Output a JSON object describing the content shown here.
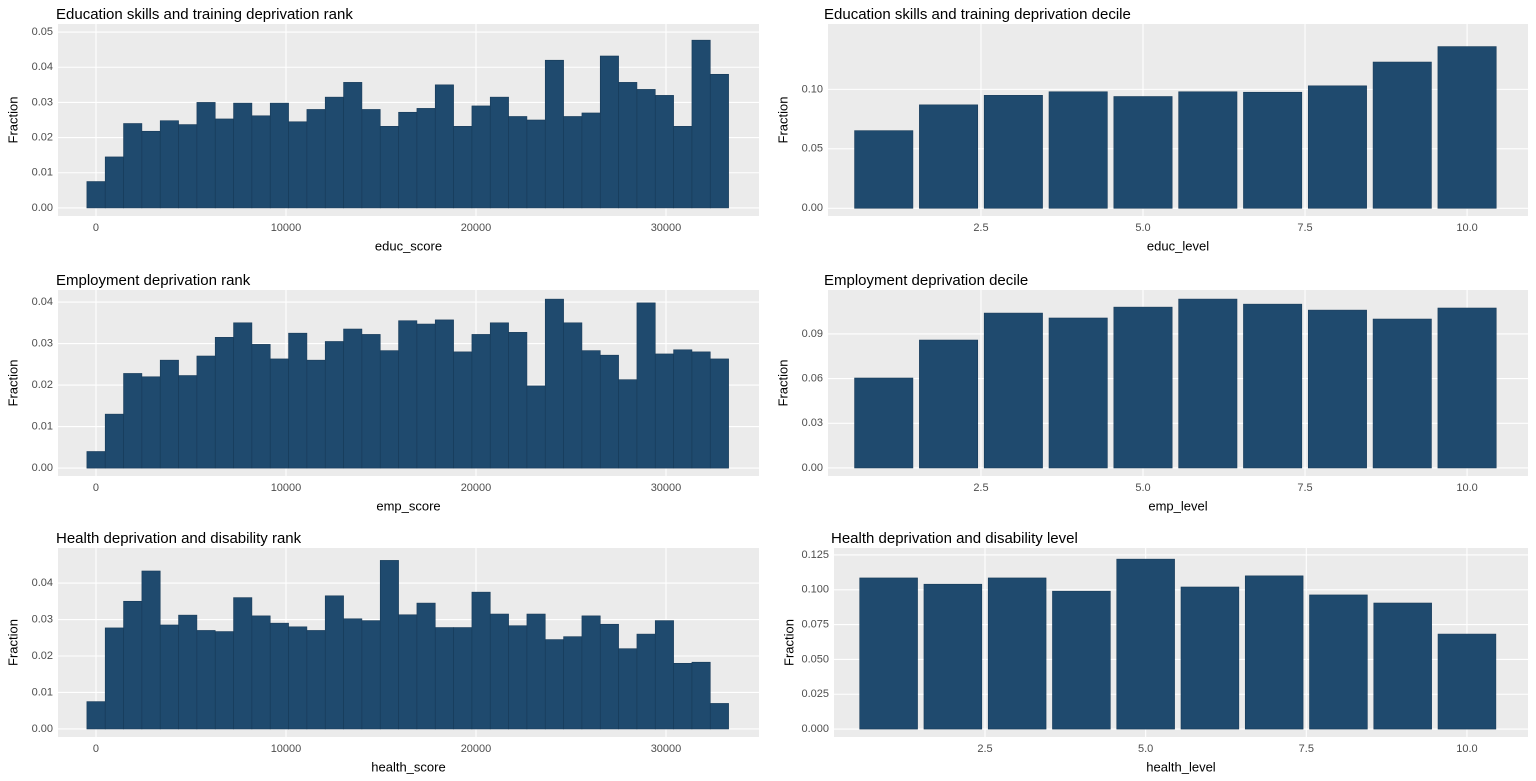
{
  "chart_data": [
    {
      "type": "histogram",
      "title": "Education skills and training deprivation rank",
      "x_label": "educ_score",
      "y_label": "Fraction",
      "color": "#1f4a6e",
      "bins": [
        -480,
        485,
        1450,
        2415,
        3380,
        4345,
        5310,
        6275,
        7240,
        8205,
        9170,
        10135,
        11100,
        12065,
        13030,
        13995,
        14960,
        15925,
        16890,
        17855,
        18820,
        19785,
        20750,
        21715,
        22680,
        23645,
        24610,
        25575,
        26540,
        27505,
        28470,
        29435,
        30400,
        31365,
        32330,
        33295
      ],
      "values": [
        0.0075,
        0.0145,
        0.024,
        0.0218,
        0.0248,
        0.0237,
        0.03,
        0.0253,
        0.0298,
        0.0262,
        0.0298,
        0.0245,
        0.028,
        0.0315,
        0.0357,
        0.028,
        0.0232,
        0.0272,
        0.0283,
        0.035,
        0.0232,
        0.029,
        0.0315,
        0.026,
        0.025,
        0.042,
        0.026,
        0.027,
        0.0432,
        0.0357,
        0.0337,
        0.032,
        0.0232,
        0.0477,
        0.038
      ],
      "xlim": [
        -2000,
        34895
      ],
      "xticks": [
        0,
        10000,
        20000,
        30000
      ],
      "ylim": [
        -0.0023,
        0.0523
      ],
      "yticks": [
        {
          "value": 0,
          "label": "0.00"
        },
        0.01,
        0.02,
        0.03,
        0.04,
        0.05
      ],
      "grid": true
    },
    {
      "type": "bar",
      "title": "Education skills and training deprivation decile",
      "x_label": "educ_level",
      "y_label": "Fraction",
      "color": "#1f4a6e",
      "x": [
        1,
        2,
        3,
        4,
        5,
        6,
        7,
        8,
        9,
        10
      ],
      "values": [
        0.0653,
        0.087,
        0.095,
        0.098,
        0.094,
        0.098,
        0.0976,
        0.103,
        0.123,
        0.136
      ],
      "xlim": [
        0.14,
        10.94
      ],
      "xticks": [
        2.5,
        {
          "value": 5,
          "label": "5.0"
        },
        7.5,
        {
          "value": 10,
          "label": "10.0"
        }
      ],
      "ylim": [
        -0.0065,
        0.155
      ],
      "yticks": [
        {
          "value": 0,
          "label": "0.00"
        },
        0.05,
        {
          "value": 0.1,
          "label": "0.10"
        }
      ],
      "grid": true
    },
    {
      "type": "histogram",
      "title": "Employment deprivation rank",
      "x_label": "emp_score",
      "y_label": "Fraction",
      "color": "#1f4a6e",
      "bins": [
        -480,
        485,
        1450,
        2415,
        3380,
        4345,
        5310,
        6275,
        7240,
        8205,
        9170,
        10135,
        11100,
        12065,
        13030,
        13995,
        14960,
        15925,
        16890,
        17855,
        18820,
        19785,
        20750,
        21715,
        22680,
        23645,
        24610,
        25575,
        26540,
        27505,
        28470,
        29435,
        30400,
        31365,
        32330,
        33295
      ],
      "values": [
        0.004,
        0.013,
        0.0228,
        0.022,
        0.026,
        0.0223,
        0.027,
        0.0315,
        0.035,
        0.0298,
        0.0263,
        0.0325,
        0.026,
        0.0305,
        0.0335,
        0.0322,
        0.0283,
        0.0355,
        0.0347,
        0.0357,
        0.028,
        0.0322,
        0.035,
        0.0327,
        0.0198,
        0.0407,
        0.035,
        0.0283,
        0.0272,
        0.0213,
        0.0398,
        0.0275,
        0.0285,
        0.028,
        0.0263
      ],
      "xlim": [
        -2000,
        34895
      ],
      "xticks": [
        0,
        10000,
        20000,
        30000
      ],
      "ylim": [
        -0.0019,
        0.0429
      ],
      "yticks": [
        {
          "value": 0,
          "label": "0.00"
        },
        0.01,
        0.02,
        0.03,
        0.04
      ],
      "grid": true
    },
    {
      "type": "bar",
      "title": "Employment deprivation decile",
      "x_label": "emp_level",
      "y_label": "Fraction",
      "color": "#1f4a6e",
      "x": [
        1,
        2,
        3,
        4,
        5,
        6,
        7,
        8,
        9,
        10
      ],
      "values": [
        0.0604,
        0.0859,
        0.104,
        0.1007,
        0.108,
        0.1134,
        0.11,
        0.106,
        0.1,
        0.1074
      ],
      "xlim": [
        0.14,
        10.94
      ],
      "xticks": [
        2.5,
        {
          "value": 5,
          "label": "5.0"
        },
        7.5,
        {
          "value": 10,
          "label": "10.0"
        }
      ],
      "ylim": [
        -0.0054,
        0.1195
      ],
      "yticks": [
        {
          "value": 0,
          "label": "0.00"
        },
        0.03,
        0.06,
        0.09
      ],
      "grid": true
    },
    {
      "type": "histogram",
      "title": "Health deprivation and disability rank",
      "x_label": "health_score",
      "y_label": "Fraction",
      "color": "#1f4a6e",
      "bins": [
        -480,
        485,
        1450,
        2415,
        3380,
        4345,
        5310,
        6275,
        7240,
        8205,
        9170,
        10135,
        11100,
        12065,
        13030,
        13995,
        14960,
        15925,
        16890,
        17855,
        18820,
        19785,
        20750,
        21715,
        22680,
        23645,
        24610,
        25575,
        26540,
        27505,
        28470,
        29435,
        30400,
        31365,
        32330,
        33295
      ],
      "values": [
        0.0075,
        0.0277,
        0.035,
        0.0433,
        0.0285,
        0.0312,
        0.027,
        0.0267,
        0.036,
        0.031,
        0.029,
        0.028,
        0.027,
        0.0365,
        0.0302,
        0.0297,
        0.0462,
        0.0313,
        0.0345,
        0.0278,
        0.0278,
        0.0375,
        0.0315,
        0.0283,
        0.0315,
        0.0245,
        0.0253,
        0.031,
        0.0287,
        0.022,
        0.026,
        0.0297,
        0.018,
        0.0183,
        0.007
      ],
      "xlim": [
        -2000,
        34895
      ],
      "xticks": [
        0,
        10000,
        20000,
        30000
      ],
      "ylim": [
        -0.0022,
        0.0496
      ],
      "yticks": [
        {
          "value": 0,
          "label": "0.00"
        },
        0.01,
        0.02,
        0.03,
        0.04
      ],
      "grid": true
    },
    {
      "type": "bar",
      "title": "Health deprivation and disability level",
      "x_label": "health_level",
      "y_label": "Fraction",
      "color": "#1f4a6e",
      "x": [
        1,
        2,
        3,
        4,
        5,
        6,
        7,
        8,
        9,
        10
      ],
      "values": [
        0.1085,
        0.104,
        0.1085,
        0.099,
        0.122,
        0.102,
        0.11,
        0.0963,
        0.0905,
        0.0682
      ],
      "xlim": [
        0.15,
        10.95
      ],
      "xticks": [
        2.5,
        {
          "value": 5,
          "label": "5.0"
        },
        7.5,
        {
          "value": 10,
          "label": "10.0"
        }
      ],
      "ylim": [
        -0.0057,
        0.13
      ],
      "yticks": [
        {
          "value": 0,
          "label": "0.000"
        },
        0.025,
        {
          "value": 0.05,
          "label": "0.050"
        },
        0.075,
        {
          "value": 0.1,
          "label": "0.100"
        },
        0.125
      ],
      "grid": true
    }
  ]
}
